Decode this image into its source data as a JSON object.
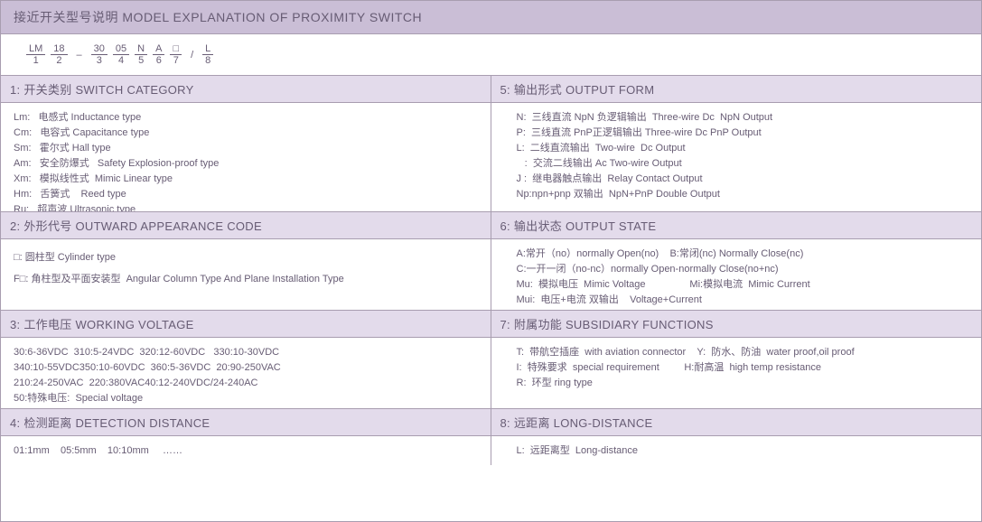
{
  "colors": {
    "headerBg": "#cabed6",
    "secBg": "#e3dbeb",
    "border": "#a89db0",
    "text": "#675c74"
  },
  "header": "接近开关型号说明 MODEL EXPLANATION OF PROXIMITY SWITCH",
  "formula": [
    {
      "t": "LM",
      "b": "1"
    },
    {
      "t": "18",
      "b": "2"
    },
    {
      "sep": "–"
    },
    {
      "t": "30",
      "b": "3"
    },
    {
      "t": "05",
      "b": "4"
    },
    {
      "t": "N",
      "b": "5"
    },
    {
      "t": "A",
      "b": "6"
    },
    {
      "t": "□",
      "b": "7"
    },
    {
      "sep": "/"
    },
    {
      "t": "L",
      "b": "8"
    }
  ],
  "s1": {
    "title": "1: 开关类别 SWITCH CATEGORY",
    "lines": [
      "Lm:   电感式 Inductance type",
      "Cm:   电容式 Capacitance type",
      "Sm:   霍尔式 Hall type",
      "Am:   安全防爆式   Safety Explosion-proof type",
      "Xm:   模拟线性式  Mimic Linear type",
      "Hm:   舌簧式    Reed type",
      "Ru:   超声波 Ultrasonic type"
    ]
  },
  "s2": {
    "title": "2: 外形代号 OUTWARD APPEARANCE CODE",
    "lines": [
      "□: 圆柱型 Cylinder type",
      "F□: 角柱型及平面安装型  Angular Column Type And Plane Installation Type"
    ]
  },
  "s3": {
    "title": "3: 工作电压 WORKING VOLTAGE",
    "lines": [
      "30:6-36VDC  310:5-24VDC  320:12-60VDC   330:10-30VDC",
      "340:10-55VDC350:10-60VDC  360:5-36VDC  20:90-250VAC",
      "210:24-250VAC  220:380VAC40:12-240VDC/24-240AC",
      "50:特殊电压:  Special voltage"
    ]
  },
  "s4": {
    "title": "4: 检测距离 DETECTION DISTANCE",
    "lines": [
      "01:1mm    05:5mm    10:10mm     ……"
    ]
  },
  "s5": {
    "title": "5: 输出形式 OUTPUT FORM",
    "lines": [
      "N:  三线直流 NpN 负逻辑输出  Three-wire Dc  NpN Output",
      "P:  三线直流 PnP正逻辑输出 Three-wire Dc PnP Output",
      "L:  二线直流输出  Two-wire  Dc Output",
      "   :  交流二线输出 Ac Two-wire Output",
      "J :  继电器触点输出  Relay Contact Output",
      "Np:npn+pnp 双输出  NpN+PnP Double Output"
    ]
  },
  "s6": {
    "title": "6: 输出状态 OUTPUT STATE",
    "lines": [
      "A:常开（no）normally Open(no)    B:常闭(nc) Normally Close(nc)",
      "C:一开一闭（no-nc）normally Open-normally Close(no+nc)",
      "Mu:  模拟电压  Mimic Voltage                Mi:模拟电流  Mimic Current",
      "Mui:  电压+电流 双输出    Voltage+Current"
    ]
  },
  "s7": {
    "title": "7: 附属功能 SUBSIDIARY FUNCTIONS",
    "lines": [
      "T:  带航空插座  with aviation connector    Y:  防水、防油  water proof,oil proof",
      "I:  特殊要求  special requirement         H:耐高温  high temp resistance",
      "R:  环型 ring type"
    ]
  },
  "s8": {
    "title": "8: 远距离 LONG-DISTANCE",
    "lines": [
      "L:  远距离型  Long-distance"
    ]
  }
}
